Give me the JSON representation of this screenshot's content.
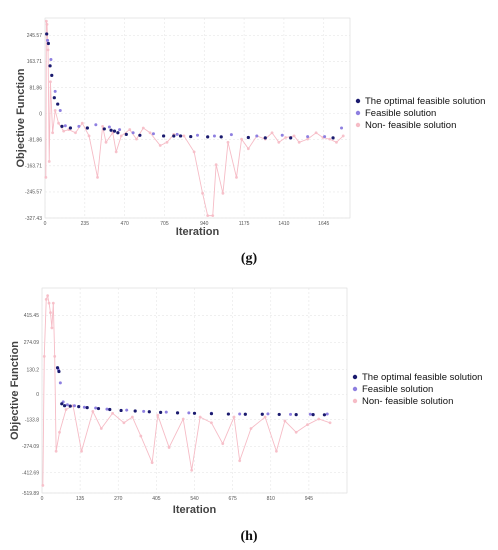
{
  "chart_data": [
    {
      "panel_label": "(g)",
      "type": "scatter",
      "xlabel": "Iteration",
      "ylabel": "Objective Function",
      "xlim": [
        0,
        1800
      ],
      "ylim": [
        -327.43,
        300
      ],
      "x_ticks": [
        0,
        235,
        470,
        705,
        940,
        1175,
        1410,
        1645
      ],
      "x_tick_labels": [
        "0",
        "235",
        "470",
        "705",
        "940",
        "1175",
        "1410",
        "1645"
      ],
      "y_ticks": [
        245.57,
        163.71,
        81.86,
        0,
        -81.86,
        -163.71,
        -245.57,
        -327.43
      ],
      "y_tick_labels": [
        "245.57",
        "163.71",
        "81.86",
        "0",
        "-81.86",
        "-163.71",
        "-245.57",
        "-327.43"
      ],
      "grid": true,
      "legend_position": "right",
      "series": [
        {
          "name": "The optimal feasible solution",
          "color": "#1a1a6e",
          "x": [
            10,
            20,
            30,
            40,
            55,
            75,
            100,
            150,
            250,
            350,
            390,
            410,
            430,
            480,
            560,
            700,
            760,
            800,
            860,
            960,
            1040,
            1200,
            1300,
            1450,
            1700
          ],
          "y": [
            250,
            220,
            150,
            120,
            50,
            30,
            -40,
            -45,
            -45,
            -48,
            -52,
            -55,
            -60,
            -65,
            -68,
            -70,
            -70,
            -70,
            -72,
            -73,
            -73,
            -75,
            -76,
            -76,
            -76
          ]
        },
        {
          "name": "Feasible solution",
          "color": "#8e7fe0",
          "x": [
            15,
            35,
            60,
            90,
            120,
            200,
            300,
            380,
            440,
            520,
            640,
            780,
            900,
            1000,
            1100,
            1250,
            1400,
            1550,
            1650,
            1750
          ],
          "y": [
            230,
            170,
            70,
            10,
            -38,
            -40,
            -35,
            -42,
            -50,
            -60,
            -63,
            -65,
            -68,
            -70,
            -66,
            -70,
            -68,
            -72,
            -72,
            -45
          ]
        },
        {
          "name": "Non- feasible solution",
          "color": "#f6bcc6",
          "x": [
            5,
            8,
            12,
            18,
            25,
            32,
            45,
            60,
            80,
            110,
            140,
            180,
            220,
            260,
            310,
            340,
            360,
            400,
            420,
            450,
            500,
            540,
            580,
            620,
            680,
            720,
            760,
            820,
            880,
            930,
            960,
            990,
            1010,
            1050,
            1080,
            1130,
            1160,
            1200,
            1250,
            1300,
            1340,
            1380,
            1420,
            1470,
            1500,
            1550,
            1600,
            1640,
            1680,
            1720,
            1760
          ],
          "y": [
            -200,
            290,
            280,
            200,
            -150,
            100,
            -60,
            10,
            -30,
            -55,
            -50,
            -60,
            -30,
            -70,
            -200,
            -40,
            -90,
            -60,
            -120,
            -70,
            -50,
            -80,
            -45,
            -60,
            -100,
            -90,
            -65,
            -70,
            -120,
            -250,
            -320,
            -320,
            -160,
            -250,
            -90,
            -200,
            -80,
            -110,
            -70,
            -80,
            -60,
            -90,
            -75,
            -70,
            -90,
            -80,
            -60,
            -75,
            -80,
            -90,
            -70
          ]
        }
      ]
    },
    {
      "panel_label": "(h)",
      "type": "scatter",
      "xlabel": "Iteration",
      "ylabel": "Objective Function",
      "xlim": [
        0,
        1080
      ],
      "ylim": [
        -519.89,
        560
      ],
      "x_ticks": [
        0,
        135,
        270,
        405,
        540,
        675,
        810,
        945
      ],
      "x_tick_labels": [
        "0",
        "135",
        "270",
        "405",
        "540",
        "675",
        "810",
        "945"
      ],
      "y_ticks": [
        415.45,
        274.09,
        130.2,
        0,
        -133.8,
        -274.09,
        -412.69,
        -519.89
      ],
      "y_tick_labels": [
        "415.45",
        "274.09",
        "130.2",
        "0",
        "-133.8",
        "-274.09",
        "-412.69",
        "-519.89"
      ],
      "grid": true,
      "legend_position": "right",
      "series": [
        {
          "name": "The optimal feasible solution",
          "color": "#1a1a6e",
          "x": [
            55,
            60,
            70,
            80,
            100,
            130,
            160,
            200,
            240,
            280,
            330,
            380,
            420,
            480,
            540,
            600,
            660,
            720,
            780,
            840,
            900,
            960,
            1000
          ],
          "y": [
            140,
            120,
            -50,
            -60,
            -62,
            -65,
            -70,
            -75,
            -80,
            -85,
            -88,
            -92,
            -95,
            -98,
            -100,
            -102,
            -104,
            -105,
            -105,
            -106,
            -107,
            -107,
            -108
          ]
        },
        {
          "name": "Feasible solution",
          "color": "#8e7fe0",
          "x": [
            58,
            65,
            75,
            90,
            115,
            150,
            190,
            230,
            300,
            360,
            440,
            520,
            600,
            700,
            800,
            880,
            950,
            1010
          ],
          "y": [
            130,
            60,
            -40,
            -55,
            -60,
            -68,
            -72,
            -78,
            -83,
            -90,
            -94,
            -98,
            -100,
            -104,
            -103,
            -106,
            -105,
            -104
          ]
        },
        {
          "name": "Non- feasible solution",
          "color": "#f6bcc6",
          "x": [
            3,
            8,
            15,
            20,
            25,
            30,
            35,
            40,
            45,
            50,
            62,
            85,
            110,
            140,
            180,
            210,
            250,
            290,
            320,
            350,
            390,
            410,
            450,
            500,
            530,
            560,
            600,
            640,
            680,
            700,
            740,
            790,
            830,
            860,
            900,
            940,
            980,
            1020
          ],
          "y": [
            -480,
            200,
            500,
            520,
            480,
            430,
            350,
            480,
            200,
            -300,
            -200,
            -80,
            -60,
            -300,
            -90,
            -180,
            -100,
            -150,
            -120,
            -220,
            -360,
            -110,
            -280,
            -130,
            -400,
            -120,
            -150,
            -260,
            -120,
            -350,
            -180,
            -120,
            -300,
            -140,
            -200,
            -160,
            -130,
            -150
          ]
        }
      ]
    }
  ]
}
